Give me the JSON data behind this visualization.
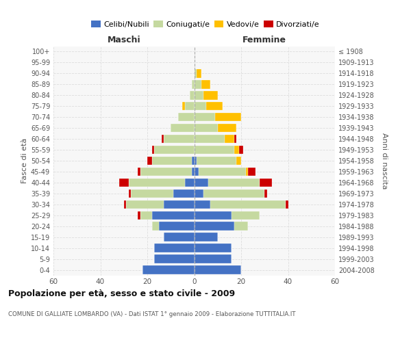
{
  "age_groups": [
    "0-4",
    "5-9",
    "10-14",
    "15-19",
    "20-24",
    "25-29",
    "30-34",
    "35-39",
    "40-44",
    "45-49",
    "50-54",
    "55-59",
    "60-64",
    "65-69",
    "70-74",
    "75-79",
    "80-84",
    "85-89",
    "90-94",
    "95-99",
    "100+"
  ],
  "birth_years": [
    "2004-2008",
    "1999-2003",
    "1994-1998",
    "1989-1993",
    "1984-1988",
    "1979-1983",
    "1974-1978",
    "1969-1973",
    "1964-1968",
    "1959-1963",
    "1954-1958",
    "1949-1953",
    "1944-1948",
    "1939-1943",
    "1934-1938",
    "1929-1933",
    "1924-1928",
    "1919-1923",
    "1914-1918",
    "1909-1913",
    "≤ 1908"
  ],
  "male_celibi": [
    22,
    17,
    17,
    13,
    15,
    18,
    13,
    9,
    4,
    1,
    1,
    0,
    0,
    0,
    0,
    0,
    0,
    0,
    0,
    0,
    0
  ],
  "male_coniugati": [
    0,
    0,
    0,
    0,
    3,
    5,
    16,
    18,
    24,
    22,
    17,
    17,
    13,
    10,
    7,
    4,
    2,
    1,
    0,
    0,
    0
  ],
  "male_vedovi": [
    0,
    0,
    0,
    0,
    0,
    0,
    0,
    0,
    0,
    0,
    0,
    0,
    0,
    0,
    0,
    1,
    0,
    0,
    0,
    0,
    0
  ],
  "male_divorziati": [
    0,
    0,
    0,
    0,
    0,
    1,
    1,
    1,
    4,
    1,
    2,
    1,
    1,
    0,
    0,
    0,
    0,
    0,
    0,
    0,
    0
  ],
  "female_nubili": [
    20,
    16,
    16,
    10,
    17,
    16,
    7,
    4,
    6,
    2,
    1,
    0,
    0,
    0,
    0,
    0,
    0,
    0,
    0,
    0,
    0
  ],
  "female_coniugate": [
    0,
    0,
    0,
    0,
    6,
    12,
    32,
    26,
    22,
    20,
    17,
    17,
    13,
    10,
    9,
    5,
    4,
    3,
    1,
    0,
    0
  ],
  "female_vedove": [
    0,
    0,
    0,
    0,
    0,
    0,
    0,
    0,
    0,
    1,
    2,
    2,
    4,
    8,
    11,
    7,
    6,
    4,
    2,
    0,
    0
  ],
  "female_divorziate": [
    0,
    0,
    0,
    0,
    0,
    0,
    1,
    1,
    5,
    3,
    0,
    2,
    1,
    0,
    0,
    0,
    0,
    0,
    0,
    0,
    0
  ],
  "color_celibi": "#4472c4",
  "color_coniugati": "#c5d9a0",
  "color_vedovi": "#ffc000",
  "color_divorziati": "#cc0000",
  "xlim": 60,
  "title": "Popolazione per età, sesso e stato civile - 2009",
  "subtitle": "COMUNE DI GALLIATE LOMBARDO (VA) - Dati ISTAT 1° gennaio 2009 - Elaborazione TUTTITALIA.IT",
  "ylabel_left": "Fasce di età",
  "ylabel_right": "Anni di nascita",
  "label_maschi": "Maschi",
  "label_femmine": "Femmine",
  "legend_labels": [
    "Celibi/Nubili",
    "Coniugati/e",
    "Vedovi/e",
    "Divorziati/e"
  ],
  "bg_color": "#ffffff",
  "plot_bg_color": "#f7f7f7",
  "grid_color": "#dddddd"
}
